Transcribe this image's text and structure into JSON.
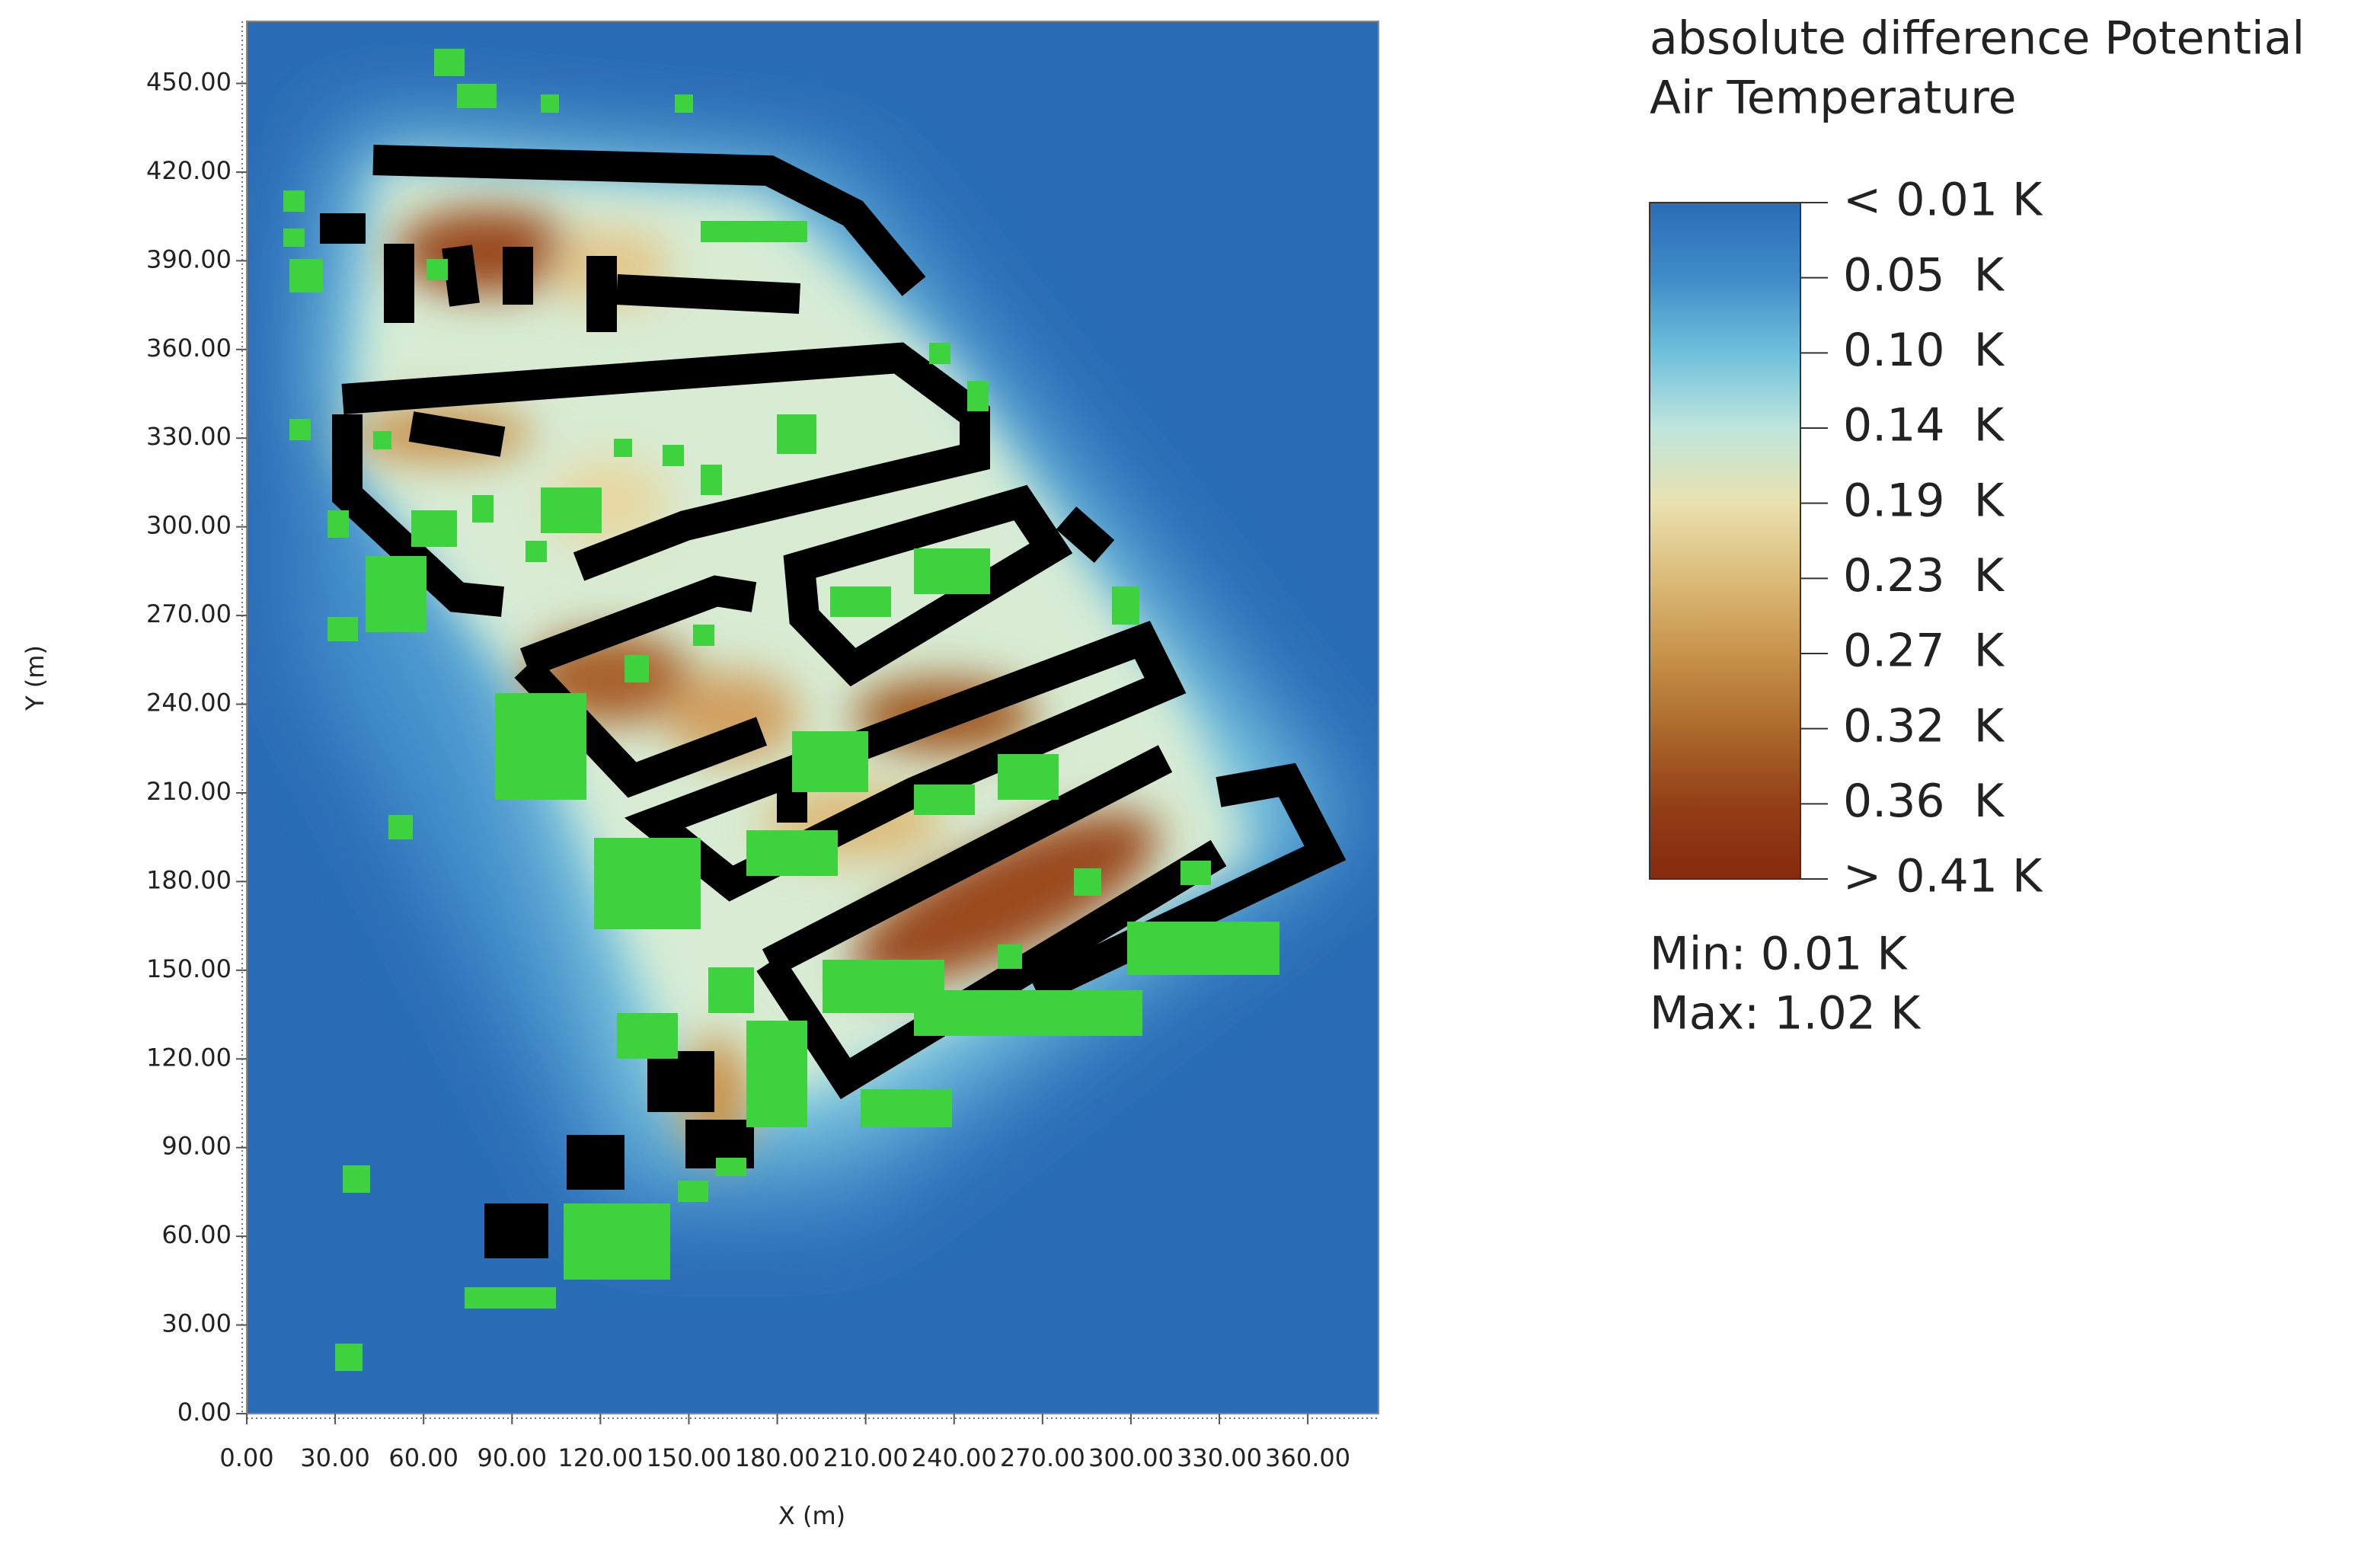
{
  "chart_data": {
    "type": "heatmap",
    "title": [
      "absolute difference Potential",
      "Air Temperature"
    ],
    "x_label": "X (m)",
    "y_label": "Y (m)",
    "xlim": [
      0,
      384
    ],
    "ylim": [
      0,
      471
    ],
    "xticks": [
      {
        "value": 0,
        "label": "0.00"
      },
      {
        "value": 30,
        "label": "30.00"
      },
      {
        "value": 60,
        "label": "60.00"
      },
      {
        "value": 90,
        "label": "90.00"
      },
      {
        "value": 120,
        "label": "120.00"
      },
      {
        "value": 150,
        "label": "150.00"
      },
      {
        "value": 180,
        "label": "180.00"
      },
      {
        "value": 210,
        "label": "210.00"
      },
      {
        "value": 240,
        "label": "240.00"
      },
      {
        "value": 270,
        "label": "270.00"
      },
      {
        "value": 300,
        "label": "300.00"
      },
      {
        "value": 330,
        "label": "330.00"
      },
      {
        "value": 360,
        "label": "360.00"
      }
    ],
    "yticks": [
      {
        "value": 0,
        "label": "0.00"
      },
      {
        "value": 30,
        "label": "30.00"
      },
      {
        "value": 60,
        "label": "60.00"
      },
      {
        "value": 90,
        "label": "90.00"
      },
      {
        "value": 120,
        "label": "120.00"
      },
      {
        "value": 150,
        "label": "150.00"
      },
      {
        "value": 180,
        "label": "180.00"
      },
      {
        "value": 210,
        "label": "210.00"
      },
      {
        "value": 240,
        "label": "240.00"
      },
      {
        "value": 270,
        "label": "270.00"
      },
      {
        "value": 300,
        "label": "300.00"
      },
      {
        "value": 330,
        "label": "330.00"
      },
      {
        "value": 360,
        "label": "360.00"
      },
      {
        "value": 390,
        "label": "390.00"
      },
      {
        "value": 420,
        "label": "420.00"
      },
      {
        "value": 450,
        "label": "450.00"
      }
    ],
    "colorbar": {
      "colors": [
        "#2a6cb6",
        "#3f8cc8",
        "#6fc0dc",
        "#bfe6dc",
        "#e9e1ae",
        "#dcbb78",
        "#c8934a",
        "#ad6a2c",
        "#933f17",
        "#862a0e"
      ],
      "ticks": [
        {
          "value": 0.01,
          "label": "< 0.01 K"
        },
        {
          "value": 0.05,
          "label": "0.05  K"
        },
        {
          "value": 0.1,
          "label": "0.10  K"
        },
        {
          "value": 0.14,
          "label": "0.14  K"
        },
        {
          "value": 0.19,
          "label": "0.19  K"
        },
        {
          "value": 0.23,
          "label": "0.23  K"
        },
        {
          "value": 0.27,
          "label": "0.27  K"
        },
        {
          "value": 0.32,
          "label": "0.32  K"
        },
        {
          "value": 0.36,
          "label": "0.36  K"
        },
        {
          "value": 0.41,
          "label": "> 0.41 K"
        }
      ]
    },
    "annotations": [
      "Min: 0.01 K",
      "Max: 1.02 K"
    ]
  }
}
